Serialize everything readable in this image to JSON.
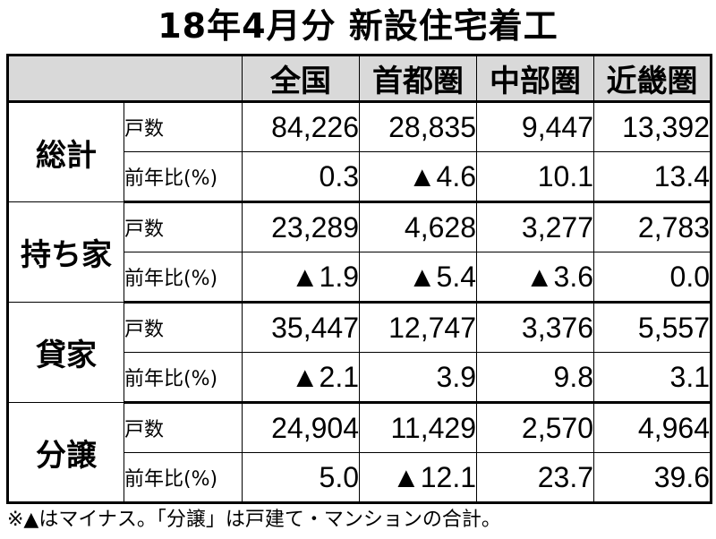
{
  "title": "18年4月分 新設住宅着工",
  "columns": [
    "全国",
    "首都圏",
    "中部圏",
    "近畿圏"
  ],
  "groups": [
    {
      "label": "総計",
      "rows": [
        {
          "metric": "戸数",
          "values": [
            "84,226",
            "28,835",
            "9,447",
            "13,392"
          ]
        },
        {
          "metric": "前年比(%)",
          "values": [
            "0.3",
            "▲4.6",
            "10.1",
            "13.4"
          ]
        }
      ]
    },
    {
      "label": "持ち家",
      "rows": [
        {
          "metric": "戸数",
          "values": [
            "23,289",
            "4,628",
            "3,277",
            "2,783"
          ]
        },
        {
          "metric": "前年比(%)",
          "values": [
            "▲1.9",
            "▲5.4",
            "▲3.6",
            "0.0"
          ]
        }
      ]
    },
    {
      "label": "貸家",
      "rows": [
        {
          "metric": "戸数",
          "values": [
            "35,447",
            "12,747",
            "3,376",
            "5,557"
          ]
        },
        {
          "metric": "前年比(%)",
          "values": [
            "▲2.1",
            "3.9",
            "9.8",
            "3.1"
          ]
        }
      ]
    },
    {
      "label": "分譲",
      "rows": [
        {
          "metric": "戸数",
          "values": [
            "24,904",
            "11,429",
            "2,570",
            "4,964"
          ]
        },
        {
          "metric": "前年比(%)",
          "values": [
            "5.0",
            "▲12.1",
            "23.7",
            "39.6"
          ]
        }
      ]
    }
  ],
  "footnote": "※▲はマイナス。「分譲」は戸建て・マンションの合計。"
}
